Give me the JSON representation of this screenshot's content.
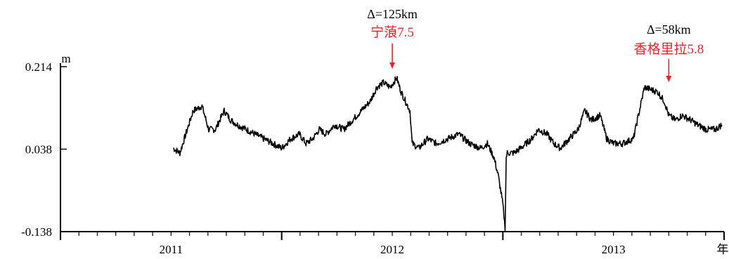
{
  "chart_data": {
    "type": "line",
    "title": "",
    "xlabel": "年",
    "ylabel": "m",
    "x_unit": "年",
    "xlim": [
      2010.5,
      2013.5
    ],
    "ylim": [
      -0.138,
      0.214
    ],
    "yticks": [
      0.214,
      0.038,
      -0.138
    ],
    "ytick_labels": [
      "0.214",
      "0.038",
      "-0.138"
    ],
    "xticks_major": [
      2010.5,
      2011.5,
      2012.5,
      2013.5
    ],
    "xticks_minor_per_year": 12,
    "xtick_labels": [
      {
        "x": 2011.0,
        "label": "2011"
      },
      {
        "x": 2012.0,
        "label": "2012"
      },
      {
        "x": 2013.0,
        "label": "2013"
      }
    ],
    "grid": false,
    "series": [
      {
        "color": "#000000",
        "x": [
          2011.01,
          2011.04,
          2011.06,
          2011.1,
          2011.14,
          2011.17,
          2011.2,
          2011.24,
          2011.27,
          2011.3,
          2011.34,
          2011.38,
          2011.42,
          2011.46,
          2011.5,
          2011.54,
          2011.58,
          2011.61,
          2011.64,
          2011.67,
          2011.7,
          2011.74,
          2011.78,
          2011.82,
          2011.86,
          2011.9,
          2011.93,
          2011.96,
          2011.99,
          2012.02,
          2012.04,
          2012.06,
          2012.08,
          2012.09,
          2012.12,
          2012.16,
          2012.2,
          2012.25,
          2012.3,
          2012.35,
          2012.4,
          2012.43,
          2012.46,
          2012.48,
          2012.5,
          2012.51,
          2012.515,
          2012.52,
          2012.53,
          2012.55,
          2012.58,
          2012.63,
          2012.66,
          2012.7,
          2012.73,
          2012.76,
          2012.8,
          2012.84,
          2012.87,
          2012.9,
          2012.94,
          2012.97,
          2013.0,
          2013.04,
          2013.09,
          2013.14,
          2013.2,
          2013.23,
          2013.25,
          2013.28,
          2013.31,
          2013.35,
          2013.38,
          2013.42,
          2013.46,
          2013.49
        ],
        "y": [
          0.04,
          0.03,
          0.06,
          0.12,
          0.13,
          0.08,
          0.08,
          0.12,
          0.1,
          0.09,
          0.08,
          0.07,
          0.06,
          0.05,
          0.04,
          0.06,
          0.07,
          0.05,
          0.06,
          0.08,
          0.07,
          0.09,
          0.08,
          0.1,
          0.12,
          0.14,
          0.17,
          0.18,
          0.17,
          0.19,
          0.16,
          0.14,
          0.12,
          0.05,
          0.04,
          0.06,
          0.05,
          0.06,
          0.07,
          0.05,
          0.04,
          0.05,
          0.02,
          -0.02,
          -0.08,
          -0.13,
          0.02,
          0.03,
          0.03,
          0.03,
          0.04,
          0.06,
          0.08,
          0.07,
          0.05,
          0.04,
          0.06,
          0.08,
          0.12,
          0.1,
          0.11,
          0.06,
          0.05,
          0.05,
          0.06,
          0.17,
          0.16,
          0.14,
          0.11,
          0.1,
          0.11,
          0.1,
          0.09,
          0.08,
          0.08,
          0.09
        ]
      }
    ],
    "annotations": [
      {
        "x": 2012.0,
        "distance": "Δ=125km",
        "event": "宁蒗7.5"
      },
      {
        "x": 2013.25,
        "distance": "Δ=58km",
        "event": "香格里拉5.8"
      }
    ]
  }
}
